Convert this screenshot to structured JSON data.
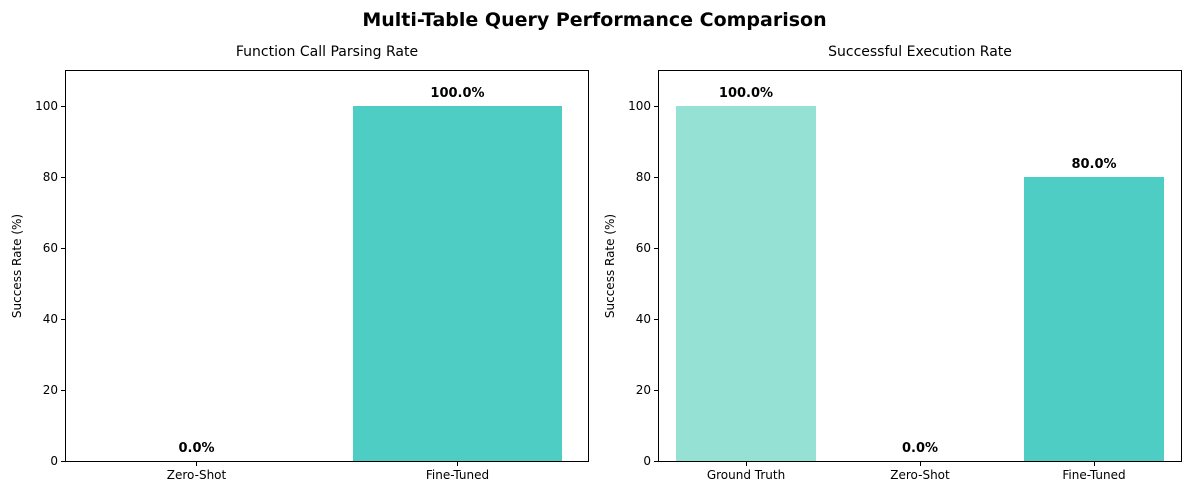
{
  "figure": {
    "title": "Multi-Table Query Performance Comparison",
    "background": "#ffffff",
    "text_color": "#000000",
    "spine_color": "#000000"
  },
  "chart_data": [
    {
      "type": "bar",
      "title": "Function Call Parsing Rate",
      "categories": [
        "Zero-Shot",
        "Fine-Tuned"
      ],
      "values": [
        0.0,
        100.0
      ],
      "value_labels": [
        "0.0%",
        "100.0%"
      ],
      "bar_colors": [
        "#4ECDC4",
        "#4ECDC4"
      ],
      "xlabel": "",
      "ylabel": "Success Rate (%)",
      "yticks": [
        0,
        20,
        40,
        60,
        80,
        100
      ],
      "ylim": [
        0,
        110
      ],
      "grid": false,
      "legend_position": "none"
    },
    {
      "type": "bar",
      "title": "Successful Execution Rate",
      "categories": [
        "Ground Truth",
        "Zero-Shot",
        "Fine-Tuned"
      ],
      "values": [
        100.0,
        0.0,
        80.0
      ],
      "value_labels": [
        "100.0%",
        "0.0%",
        "80.0%"
      ],
      "bar_colors": [
        "#95E1D3",
        "#4ECDC4",
        "#4ECDC4"
      ],
      "xlabel": "",
      "ylabel": "Success Rate (%)",
      "yticks": [
        0,
        20,
        40,
        60,
        80,
        100
      ],
      "ylim": [
        0,
        110
      ],
      "grid": false,
      "legend_position": "none"
    }
  ]
}
